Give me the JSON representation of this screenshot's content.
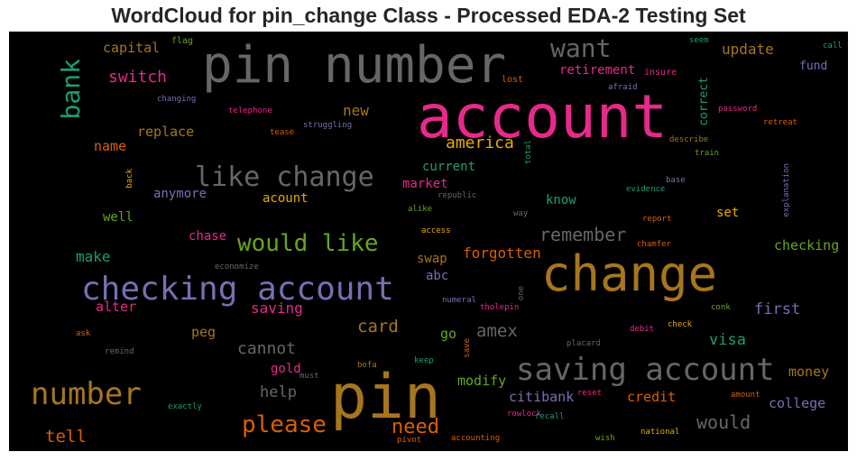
{
  "title": "WordCloud for pin_change Class - Processed EDA-2 Testing Set",
  "colors": {
    "pink": "#e7298a",
    "orange": "#d95f02",
    "gold": "#e6ab02",
    "brown": "#a6761d",
    "green": "#66a61e",
    "teal": "#1b9e77",
    "purple": "#7570b3",
    "gray": "#666666"
  },
  "words": [
    {
      "text": "account",
      "color": "#e7298a"
    },
    {
      "text": "pin number",
      "color": "#666666"
    },
    {
      "text": "change",
      "color": "#a6761d"
    },
    {
      "text": "pin",
      "color": "#a6761d"
    },
    {
      "text": "checking account",
      "color": "#7570b3"
    },
    {
      "text": "saving account",
      "color": "#666666"
    },
    {
      "text": "number",
      "color": "#a6761d"
    },
    {
      "text": "like change",
      "color": "#666666"
    },
    {
      "text": "would like",
      "color": "#66a61e"
    },
    {
      "text": "bank",
      "color": "#1b9e77"
    },
    {
      "text": "want",
      "color": "#666666"
    },
    {
      "text": "please",
      "color": "#d95f02"
    },
    {
      "text": "need",
      "color": "#d95f02"
    },
    {
      "text": "remember",
      "color": "#666666"
    },
    {
      "text": "would",
      "color": "#666666"
    },
    {
      "text": "america",
      "color": "#e6ab02"
    },
    {
      "text": "switch",
      "color": "#e7298a"
    },
    {
      "text": "update",
      "color": "#a6761d"
    },
    {
      "text": "capital",
      "color": "#a6761d"
    },
    {
      "text": "new",
      "color": "#a6761d"
    },
    {
      "text": "replace",
      "color": "#a6761d"
    },
    {
      "text": "name",
      "color": "#d95f02"
    },
    {
      "text": "current",
      "color": "#1b9e77"
    },
    {
      "text": "market",
      "color": "#e7298a"
    },
    {
      "text": "anymore",
      "color": "#7570b3"
    },
    {
      "text": "acount",
      "color": "#e6ab02"
    },
    {
      "text": "know",
      "color": "#1b9e77"
    },
    {
      "text": "set",
      "color": "#e6ab02"
    },
    {
      "text": "checking",
      "color": "#66a61e"
    },
    {
      "text": "well",
      "color": "#66a61e"
    },
    {
      "text": "chase",
      "color": "#e7298a"
    },
    {
      "text": "make",
      "color": "#1b9e77"
    },
    {
      "text": "forgotten",
      "color": "#d95f02"
    },
    {
      "text": "swap",
      "color": "#a6761d"
    },
    {
      "text": "abc",
      "color": "#7570b3"
    },
    {
      "text": "first",
      "color": "#7570b3"
    },
    {
      "text": "alter",
      "color": "#e7298a"
    },
    {
      "text": "saving",
      "color": "#e7298a"
    },
    {
      "text": "card",
      "color": "#a6761d"
    },
    {
      "text": "amex",
      "color": "#666666"
    },
    {
      "text": "peg",
      "color": "#a6761d"
    },
    {
      "text": "cannot",
      "color": "#666666"
    },
    {
      "text": "go",
      "color": "#66a61e"
    },
    {
      "text": "visa",
      "color": "#1b9e77"
    },
    {
      "text": "gold",
      "color": "#e7298a"
    },
    {
      "text": "help",
      "color": "#666666"
    },
    {
      "text": "modify",
      "color": "#66a61e"
    },
    {
      "text": "citibank",
      "color": "#7570b3"
    },
    {
      "text": "credit",
      "color": "#d95f02"
    },
    {
      "text": "money",
      "color": "#a6761d"
    },
    {
      "text": "college",
      "color": "#7570b3"
    },
    {
      "text": "tell",
      "color": "#d95f02"
    },
    {
      "text": "retirement",
      "color": "#e7298a"
    },
    {
      "text": "fund",
      "color": "#7570b3"
    },
    {
      "text": "correct",
      "color": "#1b9e77"
    },
    {
      "text": "flag",
      "color": "#66a61e"
    },
    {
      "text": "lost",
      "color": "#d95f02"
    },
    {
      "text": "insure",
      "color": "#e7298a"
    },
    {
      "text": "seem",
      "color": "#1b9e77"
    },
    {
      "text": "call",
      "color": "#1b9e77"
    },
    {
      "text": "changing",
      "color": "#7570b3"
    },
    {
      "text": "telephone",
      "color": "#e7298a"
    },
    {
      "text": "afraid",
      "color": "#7570b3"
    },
    {
      "text": "password",
      "color": "#e7298a"
    },
    {
      "text": "tease",
      "color": "#d95f02"
    },
    {
      "text": "struggling",
      "color": "#7570b3"
    },
    {
      "text": "retreat",
      "color": "#d95f02"
    },
    {
      "text": "describe",
      "color": "#a6761d"
    },
    {
      "text": "train",
      "color": "#66a61e"
    },
    {
      "text": "total",
      "color": "#1b9e77"
    },
    {
      "text": "back",
      "color": "#e6ab02"
    },
    {
      "text": "base",
      "color": "#7570b3"
    },
    {
      "text": "explanation",
      "color": "#7570b3"
    },
    {
      "text": "republic",
      "color": "#666666"
    },
    {
      "text": "evidence",
      "color": "#1b9e77"
    },
    {
      "text": "alike",
      "color": "#66a61e"
    },
    {
      "text": "way",
      "color": "#666666"
    },
    {
      "text": "report",
      "color": "#d95f02"
    },
    {
      "text": "access",
      "color": "#e6ab02"
    },
    {
      "text": "chamfer",
      "color": "#d95f02"
    },
    {
      "text": "economize",
      "color": "#666666"
    },
    {
      "text": "one",
      "color": "#666666"
    },
    {
      "text": "numeral",
      "color": "#7570b3"
    },
    {
      "text": "tholepin",
      "color": "#e7298a"
    },
    {
      "text": "conk",
      "color": "#66a61e"
    },
    {
      "text": "ask",
      "color": "#d95f02"
    },
    {
      "text": "check",
      "color": "#e6ab02"
    },
    {
      "text": "debit",
      "color": "#e7298a"
    },
    {
      "text": "remind",
      "color": "#666666"
    },
    {
      "text": "save",
      "color": "#d95f02"
    },
    {
      "text": "placard",
      "color": "#666666"
    },
    {
      "text": "bofa",
      "color": "#a6761d"
    },
    {
      "text": "keep",
      "color": "#1b9e77"
    },
    {
      "text": "must",
      "color": "#666666"
    },
    {
      "text": "amount",
      "color": "#d95f02"
    },
    {
      "text": "reset",
      "color": "#e7298a"
    },
    {
      "text": "exactly",
      "color": "#1b9e77"
    },
    {
      "text": "rowlock",
      "color": "#e7298a"
    },
    {
      "text": "recall",
      "color": "#1b9e77"
    },
    {
      "text": "national",
      "color": "#e6ab02"
    },
    {
      "text": "pivot",
      "color": "#d95f02"
    },
    {
      "text": "accounting",
      "color": "#d95f02"
    },
    {
      "text": "wish",
      "color": "#66a61e"
    }
  ]
}
